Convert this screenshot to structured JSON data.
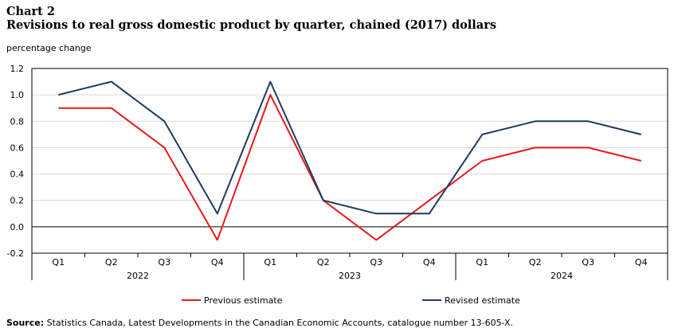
{
  "header": {
    "chart_number": "Chart 2",
    "title": "Revisions to real gross domestic product by quarter, chained (2017) dollars"
  },
  "source": {
    "label": "Source:",
    "text": "Statistics Canada, Latest Developments in the Canadian Economic Accounts, catalogue number 13-605-X."
  },
  "chart_data": {
    "type": "line",
    "ylabel": "percentage change",
    "xlabel": "",
    "ylim": [
      -0.2,
      1.2
    ],
    "yticks": [
      "1.2",
      "1.0",
      "0.8",
      "0.6",
      "0.4",
      "0.2",
      "0.0",
      "-0.2"
    ],
    "ytick_values": [
      1.2,
      1.0,
      0.8,
      0.6,
      0.4,
      0.2,
      0.0,
      -0.2
    ],
    "grid": true,
    "legend_position": "bottom",
    "categories": [
      "Q1",
      "Q2",
      "Q3",
      "Q4",
      "Q1",
      "Q2",
      "Q3",
      "Q4",
      "Q1",
      "Q2",
      "Q3",
      "Q4"
    ],
    "groups": [
      {
        "label": "2022",
        "count": 4
      },
      {
        "label": "2023",
        "count": 4
      },
      {
        "label": "2024",
        "count": 4
      }
    ],
    "series": [
      {
        "name": "Previous estimate",
        "color": "#e41a1c",
        "values": [
          0.9,
          0.9,
          0.6,
          -0.1,
          1.0,
          0.2,
          -0.1,
          0.2,
          0.5,
          0.6,
          0.6,
          0.5
        ]
      },
      {
        "name": "Revised estimate",
        "color": "#1f3a5f",
        "values": [
          1.0,
          1.1,
          0.8,
          0.1,
          1.1,
          0.2,
          0.1,
          0.1,
          0.7,
          0.8,
          0.8,
          0.7
        ]
      }
    ]
  }
}
